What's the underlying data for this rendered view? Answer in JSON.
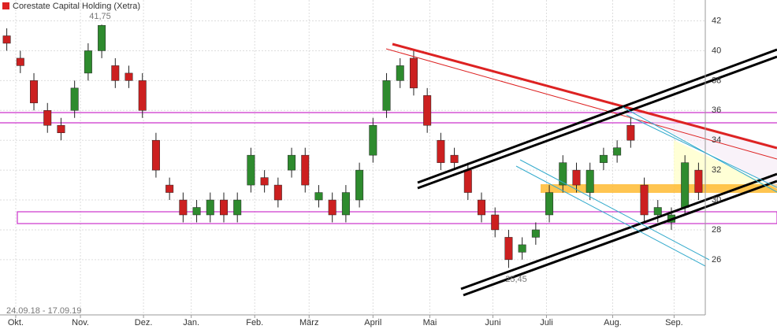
{
  "chart_data": {
    "type": "candlestick",
    "title": "Corestate Capital Holding (Xetra)",
    "subtitle": "24.09.18 - 17.09.19",
    "annotations": [
      "41,75",
      "25,45"
    ],
    "xlim": [
      -0.5,
      51.5
    ],
    "xticks": [
      {
        "value": 0.66,
        "label": "Okt."
      },
      {
        "value": 5.43,
        "label": "Nov."
      },
      {
        "value": 10.08,
        "label": "Dez."
      },
      {
        "value": 13.6,
        "label": "Jan."
      },
      {
        "value": 18.28,
        "label": "Feb."
      },
      {
        "value": 22.29,
        "label": "März"
      },
      {
        "value": 27.0,
        "label": "April"
      },
      {
        "value": 31.19,
        "label": "Mai"
      },
      {
        "value": 35.84,
        "label": "Juni"
      },
      {
        "value": 39.79,
        "label": "Juli"
      },
      {
        "value": 44.67,
        "label": "Aug."
      },
      {
        "value": 49.2,
        "label": "Sep."
      }
    ],
    "ylim": [
      22.3,
      43.4
    ],
    "yticks": [
      26,
      28,
      30,
      32,
      34,
      36,
      38,
      40,
      42
    ],
    "grid": true,
    "up_color": "#2e8b2e",
    "down_color": "#cc2020",
    "open": [
      41,
      39.5,
      38,
      36,
      35,
      36,
      38.5,
      40,
      39,
      38.5,
      38,
      34,
      31,
      30,
      29,
      29,
      30,
      29,
      31,
      31.5,
      31,
      32,
      33,
      30,
      30,
      29,
      30,
      33,
      36,
      38,
      39.5,
      37,
      34,
      33,
      32,
      30,
      29,
      27.5,
      26.5,
      27.5,
      29,
      31,
      32,
      30.5,
      32.5,
      33,
      35,
      31,
      29,
      28.5,
      29.5,
      32
    ],
    "high": [
      41.5,
      40,
      38.5,
      36.5,
      35.5,
      38,
      40.5,
      41.75,
      39.5,
      39,
      38.5,
      34.5,
      31.5,
      30.5,
      30,
      30.5,
      30.5,
      30.5,
      33.5,
      32,
      31.5,
      33.5,
      33.5,
      31,
      30.5,
      31,
      32.5,
      35.5,
      38.5,
      39.5,
      40,
      37.5,
      34.5,
      33.5,
      32.5,
      30.5,
      29.5,
      28,
      27.5,
      28.5,
      31,
      33,
      32.5,
      32.5,
      33.5,
      34,
      35.5,
      31.5,
      30,
      29.5,
      33,
      32.5
    ],
    "low": [
      40,
      38.5,
      36,
      34.5,
      34,
      35.5,
      38,
      39.5,
      37.5,
      37.5,
      35.5,
      31.5,
      30,
      28.5,
      28.5,
      28.5,
      28.5,
      28.5,
      30.5,
      30.5,
      29.5,
      31.5,
      30.5,
      29.5,
      28.5,
      28.5,
      29.5,
      32.5,
      35.5,
      37.5,
      37,
      34.5,
      32,
      32,
      30,
      28.5,
      27.5,
      25.45,
      26,
      27,
      28.5,
      30.5,
      30.5,
      30,
      32,
      32.5,
      33.5,
      28.5,
      28.5,
      28,
      29,
      30
    ],
    "close": [
      40.5,
      39,
      36.5,
      35,
      34.5,
      37.5,
      40,
      41.7,
      38,
      38,
      36,
      32,
      30.5,
      29,
      29.5,
      30,
      29,
      30,
      33,
      31,
      30,
      33,
      31,
      30.5,
      29,
      30.5,
      32,
      35,
      38,
      39,
      37.5,
      35,
      32.5,
      32.5,
      30.5,
      29,
      28,
      26,
      27,
      28,
      30.5,
      32.5,
      31,
      32,
      33,
      33.5,
      34,
      29,
      29.5,
      29,
      32.5,
      30.5
    ]
  }
}
